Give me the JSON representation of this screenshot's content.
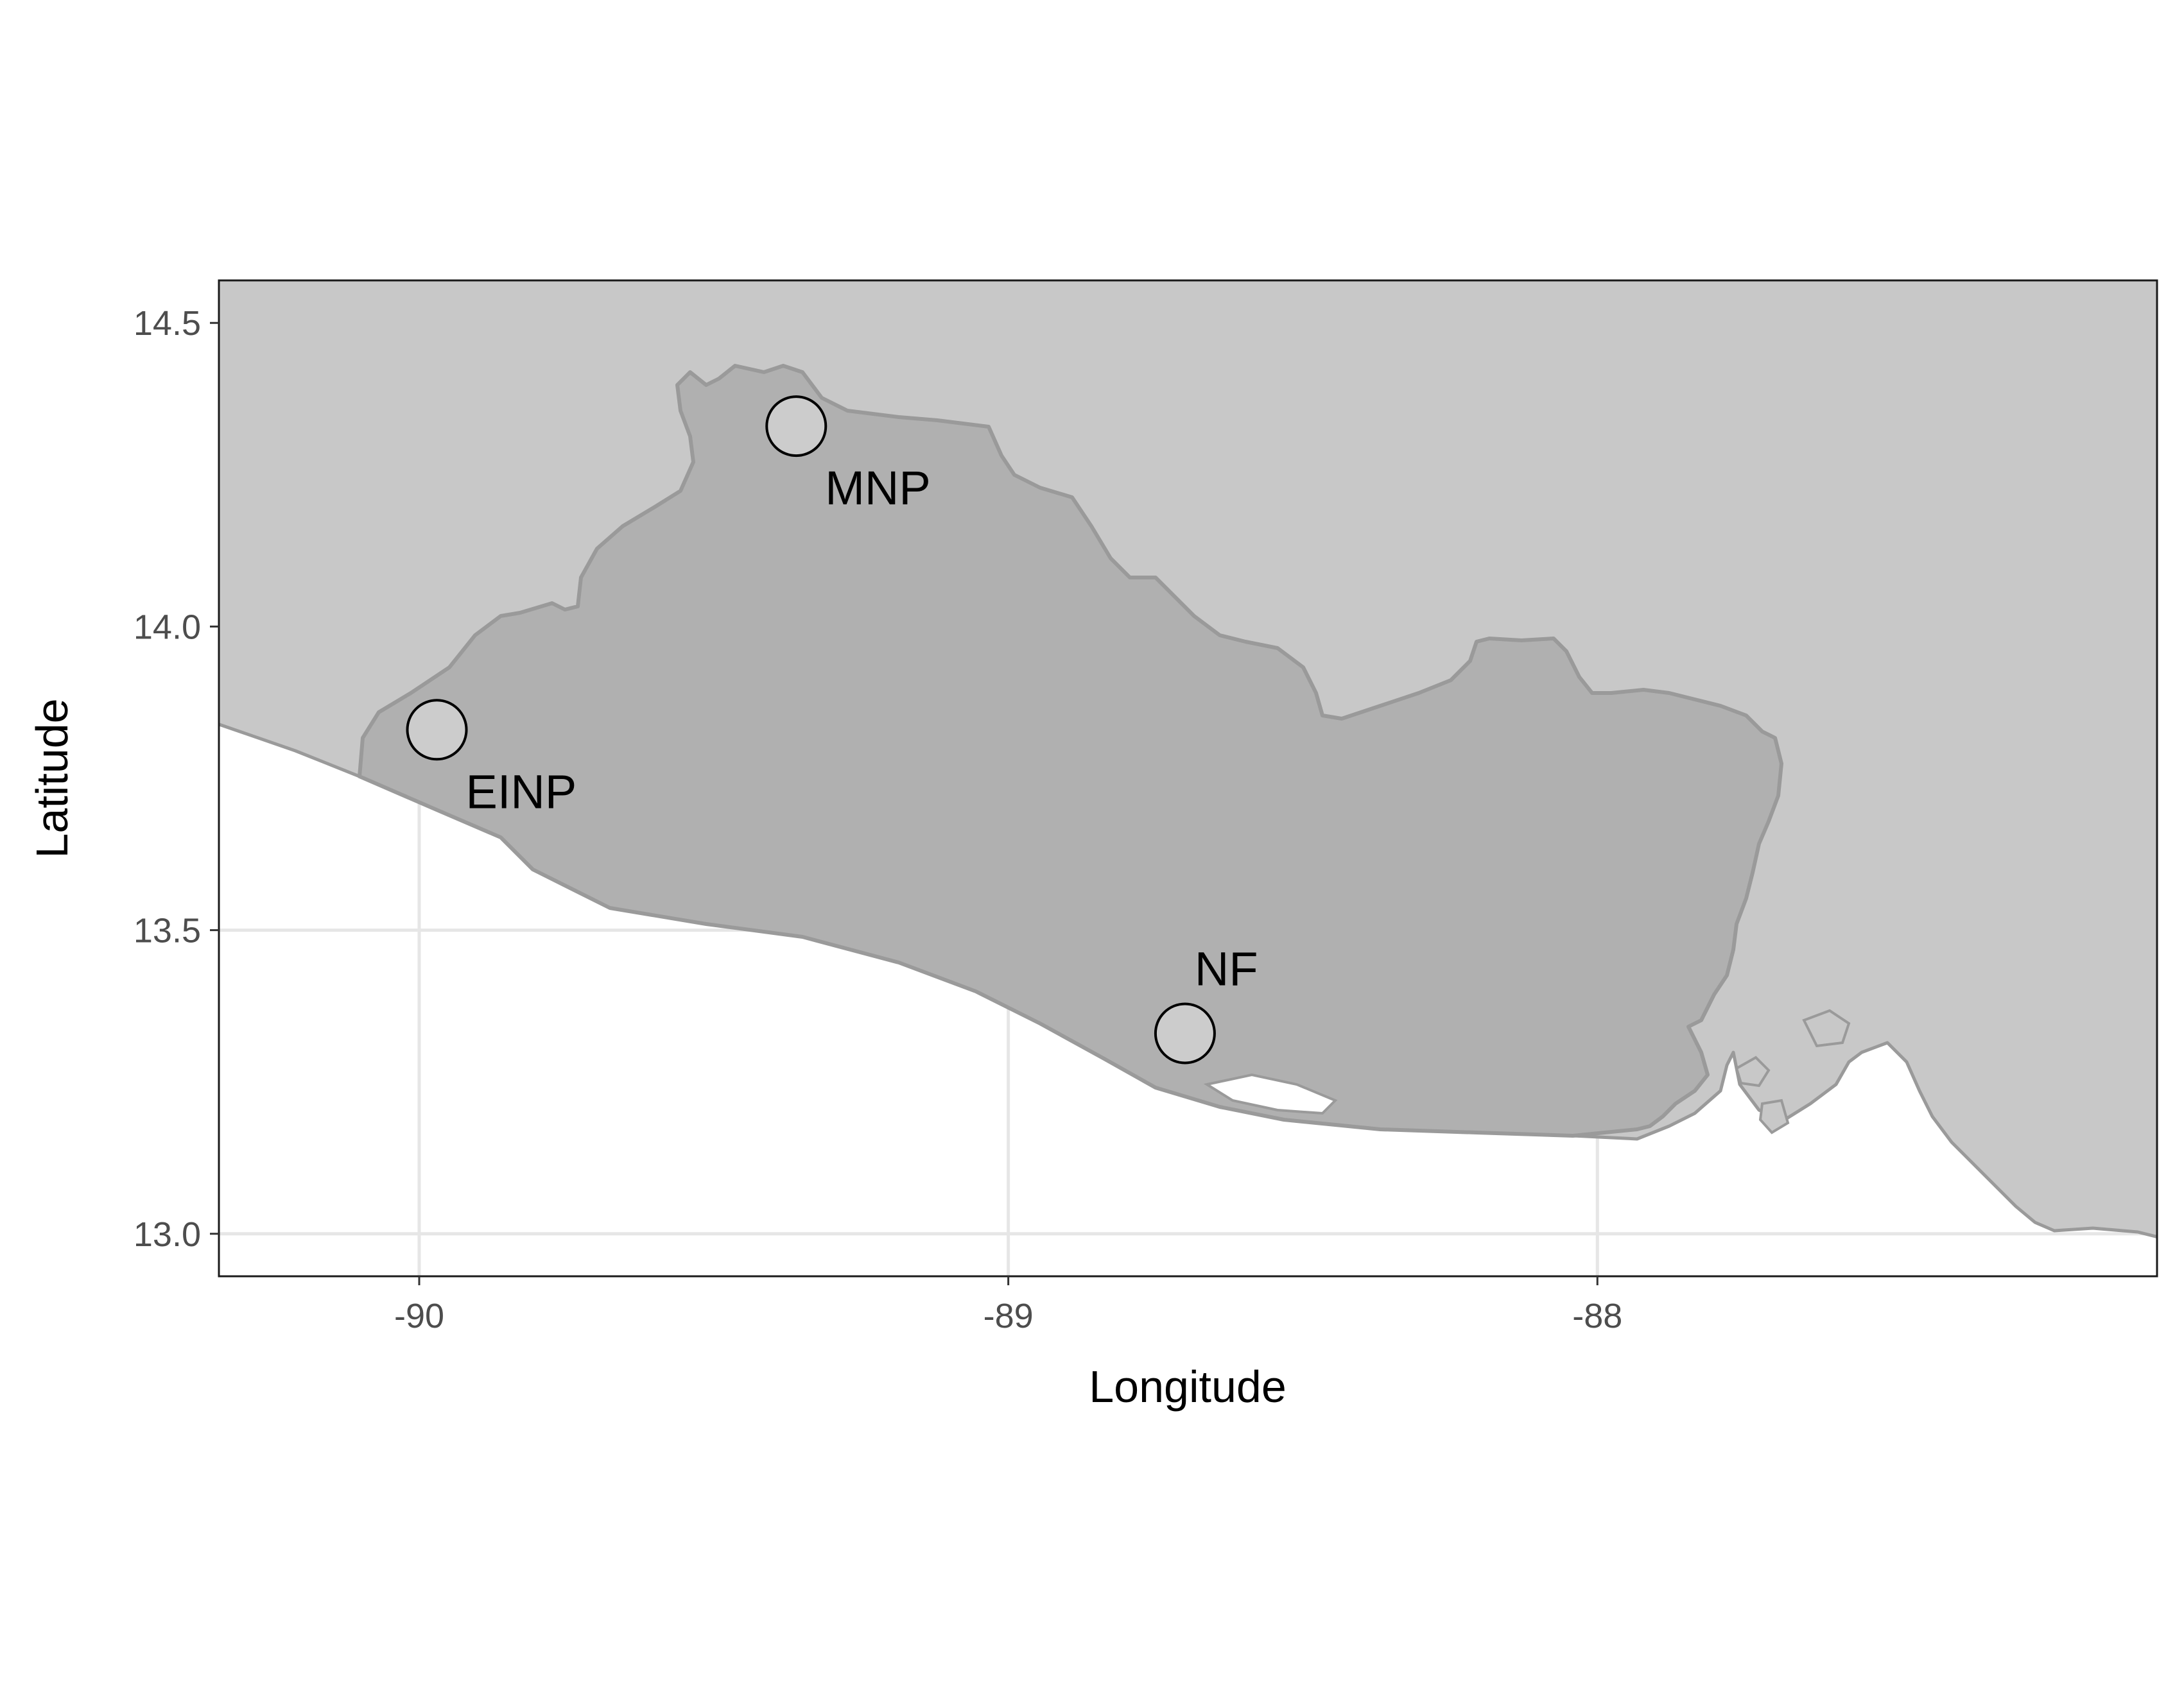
{
  "chart_data": {
    "type": "map",
    "title": "",
    "xlabel": "Longitude",
    "ylabel": "Latitude",
    "xlim": [
      -90.34,
      -87.05
    ],
    "ylim": [
      12.93,
      14.57
    ],
    "x_ticks": [
      {
        "value": -90,
        "label": "-90"
      },
      {
        "value": -89,
        "label": "-89"
      },
      {
        "value": -88,
        "label": "-88"
      }
    ],
    "y_ticks": [
      {
        "value": 13.0,
        "label": "13.0"
      },
      {
        "value": 13.5,
        "label": "13.5"
      },
      {
        "value": 14.0,
        "label": "14.0"
      },
      {
        "value": 14.5,
        "label": "14.5"
      }
    ],
    "grid": true,
    "colors": {
      "background": "#ffffff",
      "neighbor_land": "#c8c8c8",
      "focus_country": "#b0b0b0",
      "border": "#9a9a9a",
      "gridline": "#e6e6e6",
      "panel_border": "#1a1a1a",
      "site_fill": "#cccccc",
      "site_stroke": "#000000"
    },
    "sites": [
      {
        "name": "MNP",
        "lon": -89.36,
        "lat": 14.33,
        "label_position": "below-right"
      },
      {
        "name": "EINP",
        "lon": -89.97,
        "lat": 13.83,
        "label_position": "below-right"
      },
      {
        "name": "NF",
        "lon": -88.7,
        "lat": 13.33,
        "label_position": "above-right"
      }
    ]
  }
}
